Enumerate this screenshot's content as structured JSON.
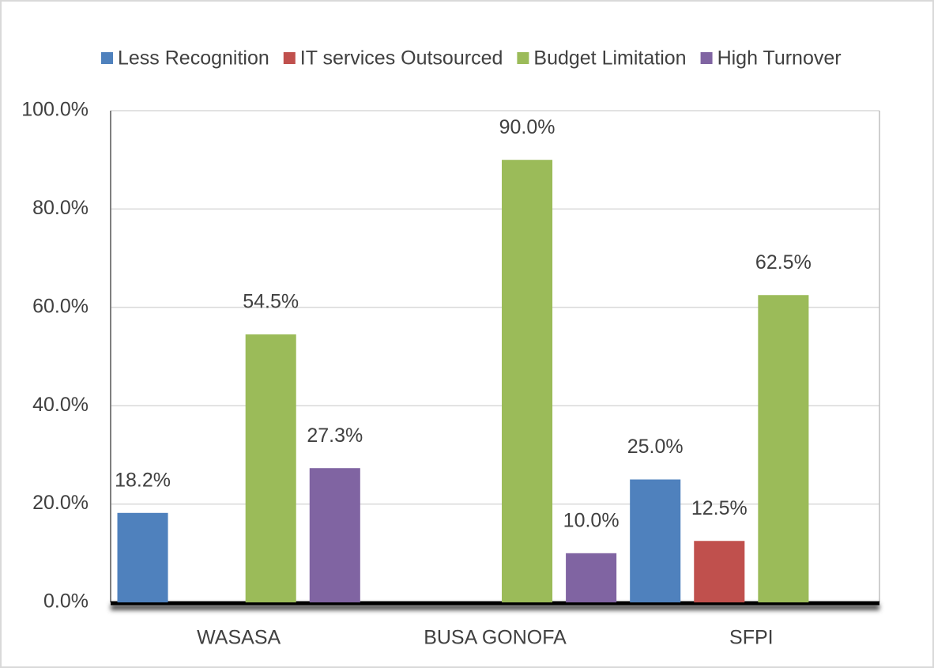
{
  "chart_data": {
    "type": "bar",
    "categories": [
      "WASASA",
      "BUSA GONOFA",
      "SFPI"
    ],
    "series": [
      {
        "name": "Less Recognition",
        "color": "#4f81bd",
        "values": [
          18.2,
          null,
          25.0
        ],
        "value_labels": [
          "18.2%",
          null,
          "25.0%"
        ]
      },
      {
        "name": "IT services Outsourced",
        "color": "#c0504d",
        "values": [
          null,
          null,
          12.5
        ],
        "value_labels": [
          null,
          null,
          "12.5%"
        ]
      },
      {
        "name": "Budget Limitation",
        "color": "#9bbb59",
        "values": [
          54.5,
          90.0,
          62.5
        ],
        "value_labels": [
          "54.5%",
          "90.0%",
          "62.5%"
        ]
      },
      {
        "name": "High Turnover",
        "color": "#8064a2",
        "values": [
          27.3,
          10.0,
          null
        ],
        "value_labels": [
          "27.3%",
          "10.0%",
          null
        ]
      }
    ],
    "ylim": [
      0,
      100
    ],
    "yticks": [
      {
        "value": 0,
        "label": "0.0%"
      },
      {
        "value": 20,
        "label": "20.0%"
      },
      {
        "value": 40,
        "label": "40.0%"
      },
      {
        "value": 60,
        "label": "60.0%"
      },
      {
        "value": 80,
        "label": "80.0%"
      },
      {
        "value": 100,
        "label": "100.0%"
      }
    ],
    "grid": true,
    "legend": "top"
  }
}
